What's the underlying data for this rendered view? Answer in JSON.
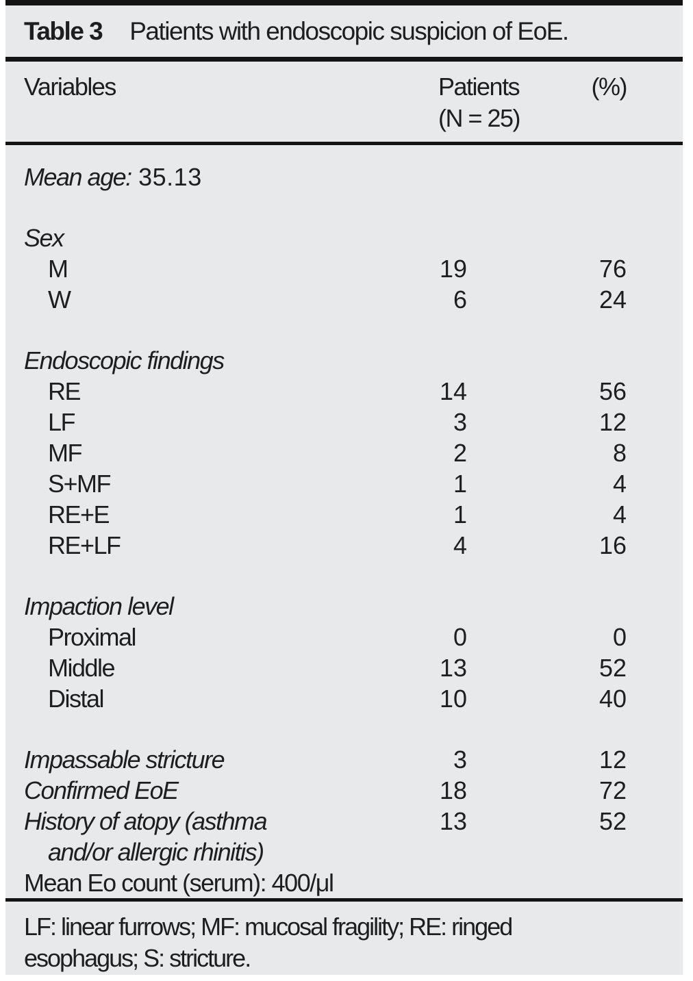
{
  "title": {
    "label": "Table 3",
    "text": "Patients with endoscopic suspicion of EoE."
  },
  "columns": {
    "variables": "Variables",
    "patients_line1": "Patients",
    "patients_line2": "(N = 25)",
    "percent": "(%)"
  },
  "rows": [
    {
      "label": "Mean age:",
      "roman": " 35.13",
      "italic": true,
      "indent": 0,
      "patients": "",
      "pct": ""
    },
    {
      "spacer": true
    },
    {
      "label": "Sex",
      "italic": true,
      "indent": 0,
      "patients": "",
      "pct": ""
    },
    {
      "label": "M",
      "italic": false,
      "indent": 1,
      "patients": "19",
      "pct": "76"
    },
    {
      "label": "W",
      "italic": false,
      "indent": 1,
      "patients": "6",
      "pct": "24"
    },
    {
      "spacer": true
    },
    {
      "label": "Endoscopic findings",
      "italic": true,
      "indent": 0,
      "patients": "",
      "pct": ""
    },
    {
      "label": "RE",
      "italic": false,
      "indent": 1,
      "patients": "14",
      "pct": "56"
    },
    {
      "label": "LF",
      "italic": false,
      "indent": 1,
      "patients": "3",
      "pct": "12"
    },
    {
      "label": "MF",
      "italic": false,
      "indent": 1,
      "patients": "2",
      "pct": "8"
    },
    {
      "label": "S+MF",
      "italic": false,
      "indent": 1,
      "patients": "1",
      "pct": "4"
    },
    {
      "label": "RE+E",
      "italic": false,
      "indent": 1,
      "patients": "1",
      "pct": "4"
    },
    {
      "label": "RE+LF",
      "italic": false,
      "indent": 1,
      "patients": "4",
      "pct": "16"
    },
    {
      "spacer": true
    },
    {
      "label": "Impaction level",
      "italic": true,
      "indent": 0,
      "patients": "",
      "pct": ""
    },
    {
      "label": "Proximal",
      "italic": false,
      "indent": 1,
      "patients": "0",
      "pct": "0"
    },
    {
      "label": "Middle",
      "italic": false,
      "indent": 1,
      "patients": "13",
      "pct": "52"
    },
    {
      "label": "Distal",
      "italic": false,
      "indent": 1,
      "patients": "10",
      "pct": "40"
    },
    {
      "spacer": true
    },
    {
      "label": "Impassable stricture",
      "italic": true,
      "indent": 0,
      "patients": "3",
      "pct": "12"
    },
    {
      "label": "Confirmed EoE",
      "italic": true,
      "indent": 0,
      "patients": "18",
      "pct": "72"
    },
    {
      "label": "History of atopy (asthma",
      "italic": true,
      "indent": 0,
      "patients": "13",
      "pct": "52"
    },
    {
      "label": "and/or allergic rhinitis)",
      "italic": true,
      "indent": 1,
      "patients": "",
      "pct": ""
    },
    {
      "label": "Mean Eo count (serum): 400/μl",
      "italic": false,
      "indent": 0,
      "patients": "",
      "pct": ""
    }
  ],
  "footnote": "LF: linear furrows; MF: mucosal fragility; RE: ringed esophagus; S: stricture.",
  "colors": {
    "panel_background": "#e8e9ea",
    "text": "#1d1e20",
    "rule": "#141415"
  }
}
